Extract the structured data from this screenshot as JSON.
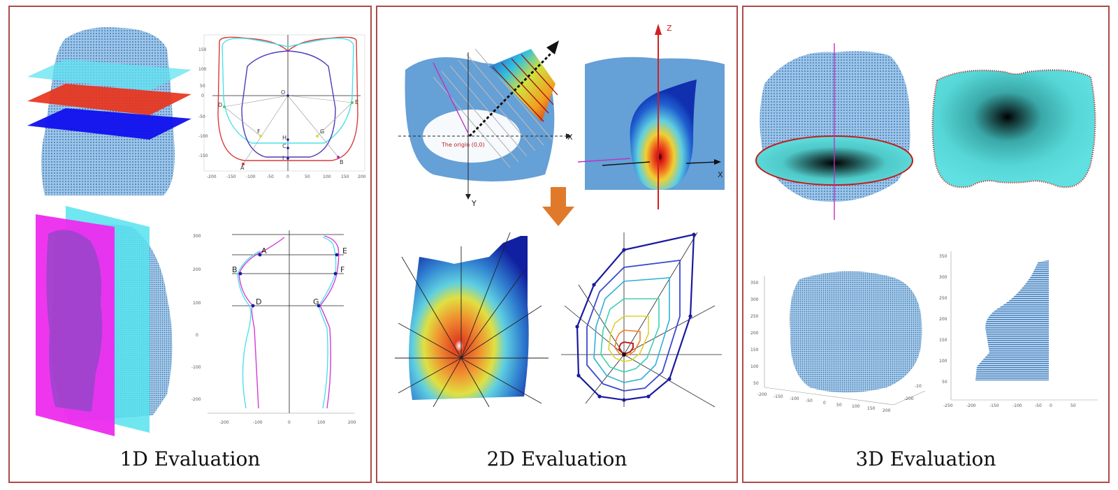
{
  "panels": [
    {
      "caption": "1D Evaluation"
    },
    {
      "caption": "2D Evaluation"
    },
    {
      "caption": "3D Evaluation"
    }
  ],
  "d1": {
    "contour_ticks_x": [
      "-200",
      "-150",
      "-100",
      "-50",
      "0",
      "50",
      "100",
      "150",
      "200"
    ],
    "contour_ticks_y": [
      "150",
      "100",
      "50",
      "0",
      "-50",
      "-100",
      "-150"
    ],
    "contour_points": [
      "O",
      "D",
      "E",
      "F",
      "G",
      "H",
      "C",
      "A",
      "B",
      "I"
    ],
    "profile_ticks_x": [
      "-200",
      "-100",
      "0",
      "100",
      "200"
    ],
    "profile_ticks_y": [
      "300",
      "200",
      "100",
      "0",
      "-100",
      "-200"
    ],
    "profile_points": [
      "A",
      "B",
      "D",
      "E",
      "F",
      "G"
    ]
  },
  "d2": {
    "origin_label": "The origin (0,0)",
    "axis_x": "X",
    "axis_y": "Y",
    "axis_z": "Z"
  },
  "d3": {
    "front_ticks_x": [
      "-200",
      "-150",
      "-100",
      "-50",
      "0",
      "50",
      "100",
      "150",
      "200"
    ],
    "front_ticks_y": [
      "350",
      "300",
      "250",
      "200",
      "150",
      "100",
      "50"
    ],
    "front_ticks_depth": [
      "-10",
      "-200"
    ],
    "side_ticks_x": [
      "-250",
      "-200",
      "-150",
      "-100",
      "-50",
      "0",
      "50"
    ],
    "side_ticks_y": [
      "350",
      "300",
      "250",
      "200",
      "150",
      "100",
      "50"
    ]
  }
}
